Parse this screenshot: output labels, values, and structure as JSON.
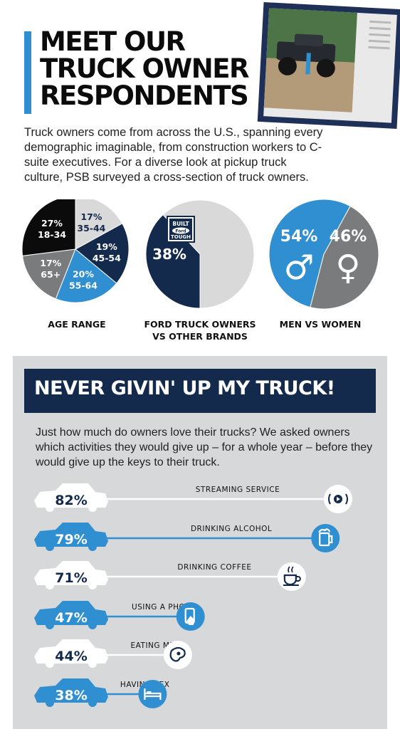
{
  "header": {
    "title_lines": [
      "MEET OUR",
      "TRUCK OWNER",
      "RESPONDENTS"
    ]
  },
  "intro": "Truck owners come from across the U.S., spanning every demographic imaginable, from construction workers to C-suite executives. For a diverse look at pickup truck culture, PSB surveyed a cross-section of truck owners.",
  "colors": {
    "navy": "#132a4d",
    "blue": "#2f8fd0",
    "gray": "#7a7b7d",
    "light_gray": "#d9d9d9",
    "black": "#0b0b0b",
    "panel": "#d7d8da"
  },
  "badge": {
    "line1": "BUILT",
    "line2": "Ford",
    "line3": "TOUGH"
  },
  "chart_data": [
    {
      "type": "pie",
      "title": "AGE RANGE",
      "slices": [
        {
          "label": "18-34",
          "value": 27,
          "color": "#0b0b0b"
        },
        {
          "label": "35-44",
          "value": 17,
          "color": "#d9d9d9"
        },
        {
          "label": "45-54",
          "value": 19,
          "color": "#132a4d"
        },
        {
          "label": "55-64",
          "value": 20,
          "color": "#2f8fd0"
        },
        {
          "label": "65+",
          "value": 17,
          "color": "#7a7b7d"
        }
      ]
    },
    {
      "type": "pie",
      "title_lines": [
        "FORD TRUCK OWNERS",
        "VS OTHER BRANDS"
      ],
      "slices": [
        {
          "label": "Ford",
          "value": 38,
          "color": "#132a4d"
        },
        {
          "label": "Other brands",
          "value": 62,
          "color": "#d9d9d9"
        }
      ]
    },
    {
      "type": "pie",
      "title": "MEN VS WOMEN",
      "slices": [
        {
          "label": "Men",
          "value": 54,
          "color": "#2f8fd0",
          "symbol": "♂"
        },
        {
          "label": "Women",
          "value": 46,
          "color": "#7a7b7d",
          "symbol": "♀"
        }
      ]
    },
    {
      "type": "bar",
      "title": "NEVER GIVIN' UP MY TRUCK!",
      "categories": [
        "STREAMING SERVICE",
        "DRINKING ALCOHOL",
        "DRINKING COFFEE",
        "USING A PHONE",
        "EATING MEAT",
        "HAVING SEX"
      ],
      "values": [
        82,
        79,
        71,
        47,
        44,
        38
      ],
      "unit": "%",
      "icons": [
        "stream-icon",
        "beer-icon",
        "coffee-icon",
        "phone-icon",
        "steak-icon",
        "bed-icon"
      ]
    }
  ],
  "section": {
    "question": "Just how much do owners love their trucks? We asked owners which activities they would give up – for a whole year – before they would give up the keys to their truck."
  }
}
